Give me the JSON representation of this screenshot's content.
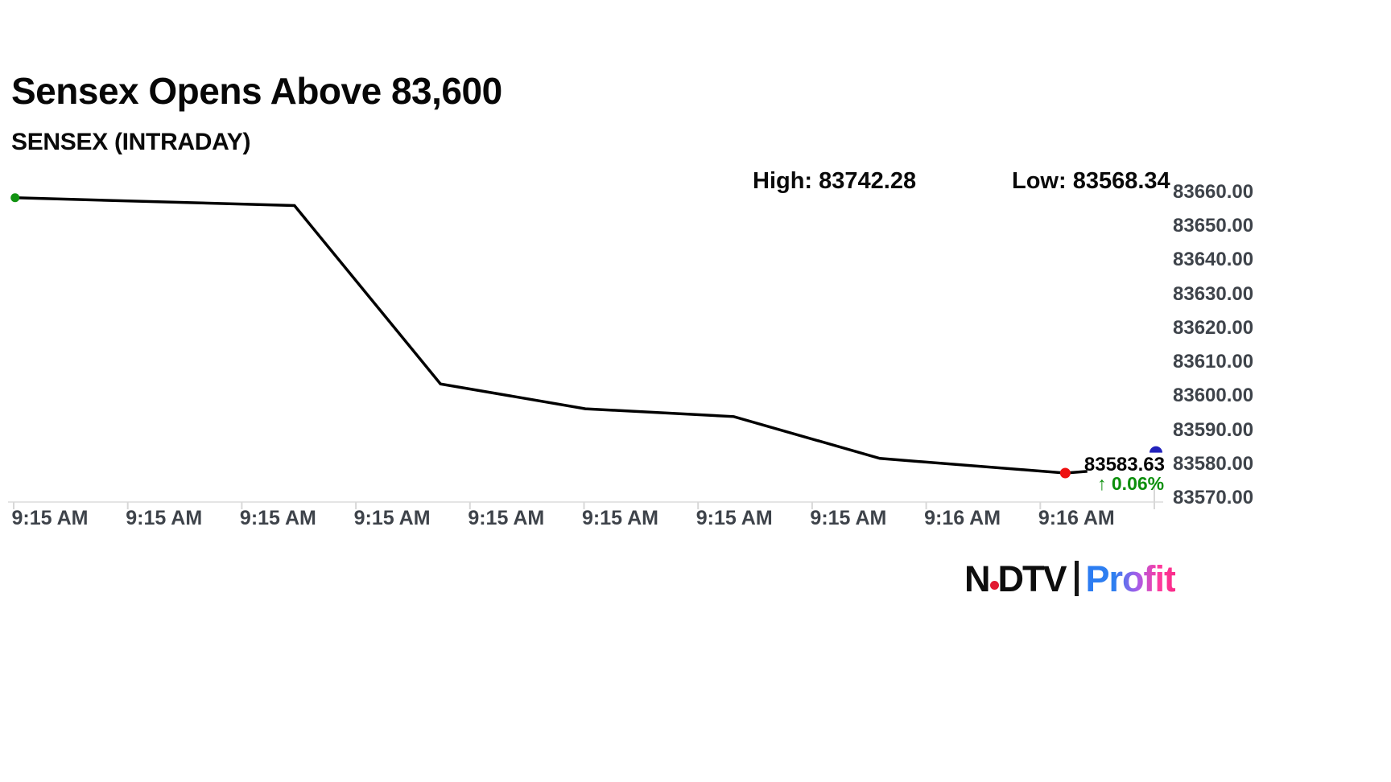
{
  "page": {
    "background": "#ffffff"
  },
  "header": {
    "title": "Sensex Opens Above 83,600",
    "subtitle": "SENSEX (INTRADAY)"
  },
  "stats": {
    "high_label": "High: 83742.28",
    "low_label": "Low: 83568.34"
  },
  "chart_data": {
    "type": "line",
    "title": "SENSEX (INTRADAY)",
    "grid": false,
    "y_axis_side": "right",
    "ylim": [
      83568.7,
      83662
    ],
    "y_ticks": [
      83660,
      83650,
      83640,
      83630,
      83620,
      83610,
      83600,
      83590,
      83580,
      83570
    ],
    "y_tick_decimals": 2,
    "x_tick_labels": [
      "9:15 AM",
      "9:15 AM",
      "9:15 AM",
      "9:15 AM",
      "9:15 AM",
      "9:15 AM",
      "9:15 AM",
      "9:15 AM",
      "9:16 AM",
      "9:16 AM"
    ],
    "points": [
      {
        "x": 0.013,
        "value": 83658.3
      },
      {
        "x": 0.254,
        "value": 83656.0
      },
      {
        "x": 0.38,
        "value": 83603.6
      },
      {
        "x": 0.505,
        "value": 83596.3
      },
      {
        "x": 0.633,
        "value": 83594.0
      },
      {
        "x": 0.759,
        "value": 83581.7
      },
      {
        "x": 0.919,
        "value": 83577.4
      },
      {
        "x": 0.938,
        "value": 83577.9
      }
    ],
    "high": 83742.28,
    "low": 83568.34,
    "last_price": "83583.63",
    "last_price_value": 83583.63,
    "change": "↑ 0.06%",
    "colors": {
      "line": "#000000",
      "start_marker": "#129312",
      "end_marker": "#ee1111",
      "axis_price_marker": "#2222bb",
      "change_text": "#0c8f0c",
      "tick_text": "#3e434a",
      "axis_line": "#e4e4e4",
      "tick_mark": "#d8d8d8"
    }
  },
  "footer_logo": {
    "ndtv_left": "N",
    "ndtv_right": "DTV",
    "profit": "Profit",
    "dot_color": "#e11931"
  }
}
